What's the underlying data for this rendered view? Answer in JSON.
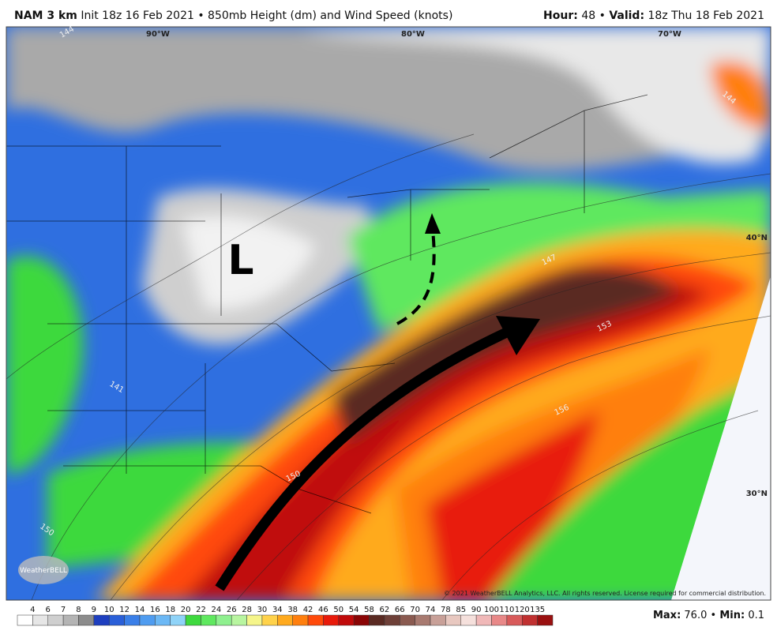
{
  "header": {
    "model": "NAM 3 km",
    "subtitle": "Init 18z 16 Feb 2021 • 850mb Height (dm) and Wind Speed (knots)",
    "hour_label": "Hour:",
    "hour": "48",
    "separator": "•",
    "valid_label": "Valid:",
    "valid": "18z Thu 18 Feb 2021"
  },
  "map": {
    "longitude_labels": [
      "90°W",
      "80°W",
      "70°W"
    ],
    "latitude_labels": [
      "40°N",
      "30°N"
    ],
    "low_label": "L",
    "contour_labels": [
      "144",
      "141",
      "147",
      "150",
      "153",
      "156",
      "150",
      "144"
    ],
    "copyright": "© 2021 WeatherBELL Analytics, LLC. All rights reserved. License required for commercial distribution.",
    "logo": "WeatherBELL"
  },
  "colorbar": {
    "ticks": [
      4,
      6,
      7,
      8,
      9,
      10,
      12,
      14,
      16,
      18,
      20,
      22,
      24,
      26,
      28,
      30,
      34,
      38,
      42,
      46,
      50,
      54,
      58,
      62,
      66,
      70,
      74,
      78,
      85,
      90,
      100,
      110,
      120,
      135
    ],
    "colors": [
      "#ffffff",
      "#e6e6e6",
      "#cfcfcf",
      "#b4b4b4",
      "#8c8c8c",
      "#1e3fbf",
      "#2a5fd8",
      "#3a7fe8",
      "#4f9cf0",
      "#6cb8f5",
      "#8fd3f8",
      "#3ed93e",
      "#5fe85f",
      "#8ff08f",
      "#b8f5a0",
      "#f5f58a",
      "#ffd24a",
      "#ffaa1e",
      "#ff7f0e",
      "#ff4a0a",
      "#e81a0a",
      "#c00a0a",
      "#8a0505",
      "#5a2a22",
      "#6e4038",
      "#8a5a50",
      "#a87a70",
      "#c8a098",
      "#e8c8c0",
      "#f5e0dc",
      "#f0b8b8",
      "#e88888",
      "#d85a5a",
      "#c03030",
      "#9a1010"
    ]
  },
  "footer": {
    "max_label": "Max:",
    "max": "76.0",
    "separator": "•",
    "min_label": "Min:",
    "min": "0.1"
  }
}
